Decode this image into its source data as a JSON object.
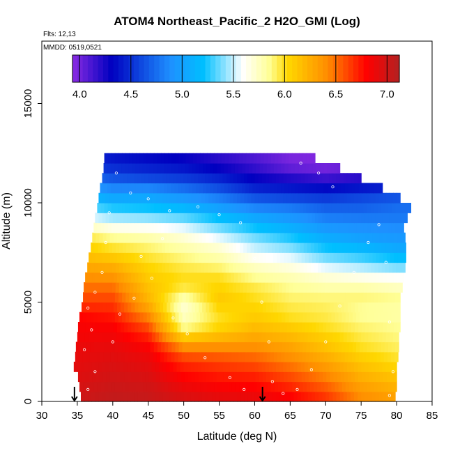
{
  "chart_data": {
    "type": "heatmap",
    "title": "ATOM4 Northeast_Pacific_2 H2O_GMI (Log)",
    "flights_label": "Flts: 12,13",
    "date_label": "MMDD: 0519,0521",
    "xlabel": "Latitude (deg N)",
    "ylabel": "Altitude (m)",
    "xlim": [
      30,
      85
    ],
    "ylim": [
      0,
      17500
    ],
    "x_ticks": [
      30,
      35,
      40,
      45,
      50,
      55,
      60,
      65,
      70,
      75,
      80,
      85
    ],
    "x_tick_labels": [
      "30",
      "35",
      "40",
      "45",
      "50",
      "55",
      "60",
      "65",
      "70",
      "75",
      "80",
      "85"
    ],
    "y_ticks": [
      0,
      5000,
      10000,
      15000
    ],
    "y_tick_labels": [
      "0",
      "5000",
      "10000",
      "15000"
    ],
    "colorbar": {
      "range": [
        3.93,
        7.12
      ],
      "ticks": [
        4.0,
        4.5,
        5.0,
        5.5,
        6.0,
        6.5,
        7.0
      ],
      "tick_labels": [
        "4.0",
        "4.5",
        "5.0",
        "5.5",
        "6.0",
        "6.5",
        "7.0"
      ],
      "colors": [
        "#8a2be2",
        "#0000c0",
        "#1e90ff",
        "#00bfff",
        "#ffffff",
        "#ffff99",
        "#ffd700",
        "#ff8c00",
        "#ff0000",
        "#b22222"
      ]
    },
    "layer_altitude_m": [
      0,
      500,
      1000,
      1500,
      2000,
      2500,
      3000,
      3500,
      4000,
      4500,
      5000,
      5500,
      6000,
      6500,
      7000,
      7500,
      8000,
      8500,
      9000,
      9500,
      10000,
      10500,
      11000,
      11500,
      12000
    ],
    "layer_lat_min": [
      35.5,
      35.3,
      35.1,
      34.5,
      34.7,
      34.8,
      35.0,
      35.1,
      35.3,
      35.6,
      35.8,
      35.9,
      36.1,
      36.4,
      36.6,
      36.9,
      37.1,
      37.3,
      37.5,
      37.8,
      38.0,
      38.2,
      38.5,
      38.7,
      38.8
    ],
    "layer_lat_max": [
      79.8,
      80.0,
      80.0,
      80.0,
      80.2,
      80.3,
      80.3,
      80.5,
      80.5,
      80.5,
      80.5,
      80.8,
      81.0,
      81.2,
      81.3,
      81.3,
      81.2,
      81.0,
      81.5,
      82.0,
      80.5,
      78.0,
      75.0,
      72.0,
      68.5
    ],
    "profile_centers_lat": [
      35,
      40,
      45,
      50,
      55,
      60,
      65,
      70,
      75,
      80
    ],
    "log_h2o_profiles": [
      [
        7.0,
        6.97,
        6.94,
        6.92,
        6.9,
        6.88,
        6.85,
        6.83,
        6.8,
        6.7,
        6.6,
        6.5,
        6.4,
        6.3,
        6.2,
        6.1,
        6.0,
        5.8,
        5.6,
        5.4,
        5.2,
        5.0,
        4.8,
        4.6,
        4.5
      ],
      [
        7.05,
        7.02,
        6.99,
        6.96,
        6.93,
        6.9,
        6.86,
        6.82,
        6.75,
        6.68,
        6.6,
        6.5,
        6.38,
        6.26,
        6.12,
        5.98,
        5.85,
        5.65,
        5.45,
        5.25,
        5.05,
        4.85,
        4.65,
        4.5,
        4.4
      ],
      [
        7.03,
        7.0,
        6.96,
        6.92,
        6.88,
        6.82,
        6.72,
        6.6,
        6.45,
        6.3,
        6.2,
        6.15,
        6.1,
        6.05,
        5.98,
        5.9,
        5.8,
        5.62,
        5.42,
        5.22,
        5.05,
        4.85,
        4.6,
        4.45,
        4.35
      ],
      [
        6.95,
        6.88,
        6.8,
        6.72,
        6.6,
        6.4,
        6.1,
        5.85,
        5.75,
        5.7,
        5.8,
        5.95,
        6.0,
        5.95,
        5.88,
        5.8,
        5.7,
        5.55,
        5.35,
        5.15,
        4.95,
        4.75,
        4.55,
        4.4,
        4.3
      ],
      [
        6.9,
        6.82,
        6.74,
        6.66,
        6.56,
        6.4,
        6.2,
        6.05,
        6.0,
        6.05,
        6.1,
        6.05,
        6.0,
        5.9,
        5.8,
        5.7,
        5.55,
        5.38,
        5.2,
        5.0,
        4.82,
        4.62,
        4.45,
        4.3,
        4.2
      ],
      [
        6.88,
        6.8,
        6.72,
        6.62,
        6.52,
        6.4,
        6.28,
        6.18,
        6.1,
        6.05,
        6.0,
        5.95,
        5.85,
        5.75,
        5.62,
        5.5,
        5.38,
        5.22,
        5.05,
        4.85,
        4.65,
        4.45,
        4.3,
        4.18,
        4.1
      ],
      [
        6.8,
        6.7,
        6.6,
        6.5,
        6.4,
        6.3,
        6.2,
        6.1,
        6.0,
        5.95,
        5.9,
        5.85,
        5.78,
        5.68,
        5.55,
        5.4,
        5.25,
        5.1,
        4.95,
        4.8,
        4.6,
        4.4,
        4.22,
        4.05,
        3.98
      ],
      [
        6.65,
        6.55,
        6.45,
        6.35,
        6.25,
        6.15,
        6.08,
        6.0,
        5.95,
        5.92,
        5.88,
        5.8,
        5.7,
        5.55,
        5.38,
        5.22,
        5.08,
        4.95,
        4.82,
        4.7,
        4.55,
        4.35,
        4.15,
        4.0,
        3.95
      ],
      [
        6.4,
        6.32,
        6.24,
        6.16,
        6.08,
        6.0,
        5.95,
        5.9,
        5.85,
        5.85,
        5.88,
        5.8,
        5.65,
        5.48,
        5.3,
        5.15,
        5.0,
        4.9,
        4.8,
        4.7,
        4.6,
        4.4,
        4.2,
        4.05,
        3.98
      ],
      [
        6.3,
        6.22,
        6.14,
        6.05,
        5.98,
        5.92,
        5.88,
        5.85,
        5.82,
        5.82,
        5.85,
        5.75,
        5.6,
        5.4,
        5.2,
        5.05,
        4.95,
        4.88,
        4.8,
        4.75,
        4.65,
        4.45,
        4.25,
        4.1,
        4.0
      ]
    ],
    "flight_track": [
      [
        36.5,
        600
      ],
      [
        37.5,
        1500
      ],
      [
        36.0,
        2600
      ],
      [
        37.0,
        3600
      ],
      [
        36.5,
        4700
      ],
      [
        37.5,
        5500
      ],
      [
        38.5,
        6500
      ],
      [
        39.0,
        8000
      ],
      [
        39.5,
        9500
      ],
      [
        40.5,
        11500
      ],
      [
        42.5,
        10500
      ],
      [
        45.0,
        10200
      ],
      [
        48.0,
        9600
      ],
      [
        52.0,
        9800
      ],
      [
        55.0,
        9400
      ],
      [
        58.0,
        9000
      ],
      [
        60.0,
        7200
      ],
      [
        61.0,
        5000
      ],
      [
        62.0,
        3000
      ],
      [
        62.5,
        1000
      ],
      [
        64.0,
        400
      ],
      [
        66.0,
        600
      ],
      [
        68.0,
        1600
      ],
      [
        70.0,
        3000
      ],
      [
        72.0,
        4800
      ],
      [
        74.0,
        6500
      ],
      [
        76.0,
        8000
      ],
      [
        77.5,
        8900
      ],
      [
        78.5,
        7000
      ],
      [
        79.0,
        4000
      ],
      [
        79.5,
        1500
      ],
      [
        79.0,
        300
      ],
      [
        44.0,
        7300
      ],
      [
        45.5,
        6200
      ],
      [
        48.5,
        4200
      ],
      [
        50.5,
        3400
      ],
      [
        53.0,
        2200
      ],
      [
        56.5,
        1200
      ],
      [
        58.5,
        600
      ],
      [
        66.5,
        12000
      ],
      [
        69.0,
        11500
      ],
      [
        71.0,
        10800
      ],
      [
        40.0,
        3000
      ],
      [
        41.0,
        4400
      ],
      [
        43.0,
        5200
      ],
      [
        47.0,
        8200
      ]
    ],
    "arrow_markers_lat": [
      34.6,
      61.1
    ]
  }
}
